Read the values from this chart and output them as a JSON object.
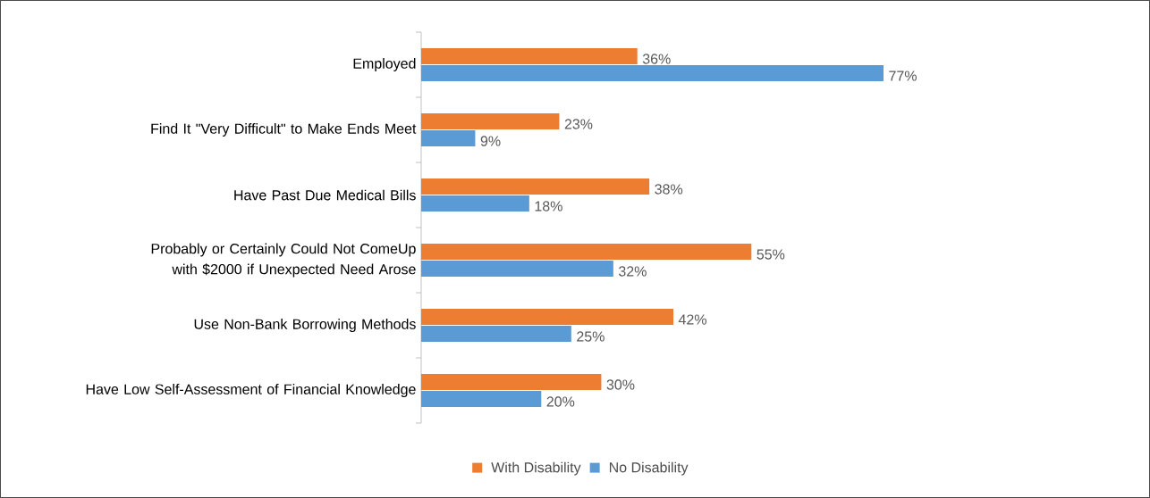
{
  "chart_data": {
    "type": "bar",
    "orientation": "horizontal",
    "categories": [
      "Employed",
      "Find It \"Very Difficult\" to Make Ends Meet",
      "Have Past Due Medical Bills",
      "Probably or Certainly Could Not ComeUp with $2000 if Unexpected Need Arose",
      "Use Non-Bank Borrowing Methods",
      "Have Low Self-Assessment of Financial Knowledge"
    ],
    "series": [
      {
        "name": "With Disability",
        "color": "#ed7d31",
        "values": [
          36,
          23,
          38,
          55,
          42,
          30
        ],
        "value_labels": [
          "36%",
          "23%",
          "38%",
          "55%",
          "42%",
          "30%"
        ]
      },
      {
        "name": "No Disability",
        "color": "#5b9bd5",
        "values": [
          77,
          9,
          18,
          32,
          25,
          20
        ],
        "value_labels": [
          "77%",
          "9%",
          "18%",
          "32%",
          "25%",
          "20%"
        ]
      }
    ],
    "legend": "bottom"
  }
}
